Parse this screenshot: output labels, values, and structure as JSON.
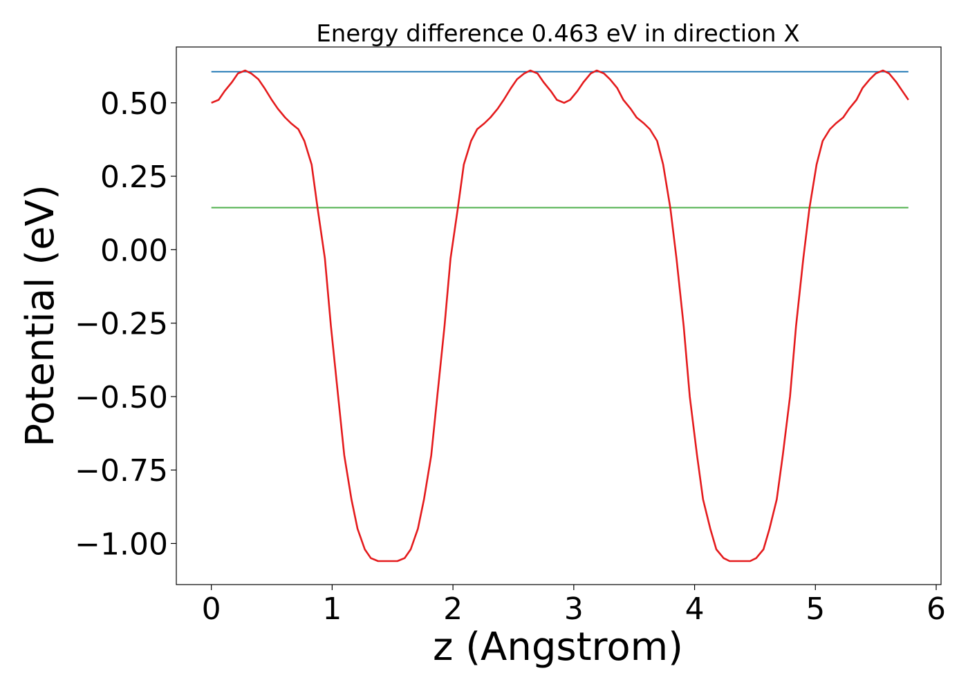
{
  "chart_data": {
    "type": "line",
    "title": "Energy difference 0.463 eV in direction X",
    "xlabel": "z (Angstrom)",
    "ylabel": "Potential (eV)",
    "xlim": [
      -0.29,
      6.04
    ],
    "ylim": [
      -1.14,
      0.69
    ],
    "xticks": [
      0,
      1,
      2,
      3,
      4,
      5,
      6
    ],
    "xtick_labels": [
      "0",
      "1",
      "2",
      "3",
      "4",
      "5",
      "6"
    ],
    "yticks": [
      0.5,
      0.25,
      0.0,
      -0.25,
      -0.5,
      -0.75,
      -1.0
    ],
    "ytick_labels": [
      "0.50",
      "0.25",
      "0.00",
      "−0.25",
      "−0.50",
      "−0.75",
      "−1.00"
    ],
    "grid": false,
    "legend": "none",
    "series": [
      {
        "color": "#e41a1c",
        "x": [
          0.0,
          0.06,
          0.11,
          0.17,
          0.22,
          0.28,
          0.33,
          0.39,
          0.44,
          0.5,
          0.55,
          0.61,
          0.66,
          0.72,
          0.77,
          0.83,
          0.88,
          0.94,
          0.99,
          1.05,
          1.1,
          1.16,
          1.21,
          1.27,
          1.32,
          1.38,
          1.43,
          1.49,
          1.54,
          1.6,
          1.65,
          1.71,
          1.76,
          1.82,
          1.87,
          1.93,
          1.98,
          2.04,
          2.09,
          2.15,
          2.2,
          2.26,
          2.31,
          2.37,
          2.42,
          2.48,
          2.53,
          2.59,
          2.64,
          2.7,
          2.75,
          2.81,
          2.86,
          2.92,
          2.97,
          3.03,
          3.08,
          3.14,
          3.19,
          3.25,
          3.3,
          3.36,
          3.41,
          3.47,
          3.52,
          3.58,
          3.63,
          3.69,
          3.74,
          3.8,
          3.85,
          3.91,
          3.96,
          4.02,
          4.07,
          4.13,
          4.18,
          4.24,
          4.29,
          4.35,
          4.4,
          4.46,
          4.51,
          4.57,
          4.62,
          4.68,
          4.73,
          4.79,
          4.84,
          4.9,
          4.95,
          5.01,
          5.06,
          5.12,
          5.17,
          5.23,
          5.28,
          5.34,
          5.39,
          5.45,
          5.5,
          5.56,
          5.61,
          5.67,
          5.72,
          5.77
        ],
        "y": [
          0.5,
          0.51,
          0.54,
          0.57,
          0.6,
          0.61,
          0.6,
          0.58,
          0.55,
          0.51,
          0.48,
          0.45,
          0.43,
          0.41,
          0.37,
          0.29,
          0.14,
          -0.03,
          -0.26,
          -0.5,
          -0.7,
          -0.85,
          -0.95,
          -1.02,
          -1.05,
          -1.06,
          -1.06,
          -1.06,
          -1.06,
          -1.05,
          -1.02,
          -0.95,
          -0.85,
          -0.7,
          -0.5,
          -0.26,
          -0.03,
          0.14,
          0.29,
          0.37,
          0.41,
          0.43,
          0.45,
          0.48,
          0.51,
          0.55,
          0.58,
          0.6,
          0.61,
          0.6,
          0.57,
          0.54,
          0.51,
          0.5,
          0.51,
          0.54,
          0.57,
          0.6,
          0.61,
          0.6,
          0.58,
          0.55,
          0.51,
          0.48,
          0.45,
          0.43,
          0.41,
          0.37,
          0.29,
          0.14,
          -0.03,
          -0.26,
          -0.5,
          -0.7,
          -0.85,
          -0.95,
          -1.02,
          -1.05,
          -1.06,
          -1.06,
          -1.06,
          -1.06,
          -1.05,
          -1.02,
          -0.95,
          -0.85,
          -0.7,
          -0.5,
          -0.26,
          -0.03,
          0.14,
          0.29,
          0.37,
          0.41,
          0.43,
          0.45,
          0.48,
          0.51,
          0.55,
          0.58,
          0.6,
          0.61,
          0.6,
          0.57,
          0.54,
          0.51
        ]
      },
      {
        "color": "#1f77b4",
        "x": [
          0.0,
          5.77
        ],
        "y": [
          0.606,
          0.606
        ]
      },
      {
        "color": "#4daf4a",
        "x": [
          0.0,
          5.77
        ],
        "y": [
          0.143,
          0.143
        ]
      }
    ]
  }
}
